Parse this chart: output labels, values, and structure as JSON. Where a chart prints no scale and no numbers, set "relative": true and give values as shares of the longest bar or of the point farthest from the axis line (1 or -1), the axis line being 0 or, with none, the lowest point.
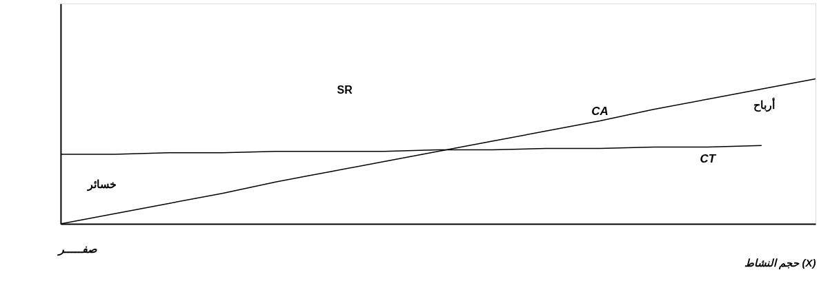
{
  "chart_data": {
    "type": "line",
    "relative": true,
    "grid": false,
    "marker": "none",
    "line_style": "solid",
    "tick_labels": false,
    "xlabel": "حجم النشاط (X)",
    "categories": [
      null,
      null,
      null,
      null,
      null,
      null,
      null,
      null,
      null,
      null,
      null,
      null,
      null,
      null,
      null
    ],
    "series": [
      {
        "name": "CA",
        "color": "#000000",
        "values": [
          0,
          0.07,
          0.14,
          0.21,
          0.29,
          0.36,
          0.43,
          0.5,
          0.57,
          0.64,
          0.71,
          0.79,
          0.86,
          0.93,
          1
        ]
      },
      {
        "name": "CT",
        "color": "#000000",
        "values": [
          0.48,
          0.48,
          0.49,
          0.49,
          0.5,
          0.5,
          0.5,
          0.51,
          0.51,
          0.52,
          0.52,
          0.53,
          0.53,
          0.54,
          null
        ]
      }
    ],
    "annotations": [
      "SR",
      "أرباح",
      "خسائر",
      "صفـــــر"
    ]
  }
}
